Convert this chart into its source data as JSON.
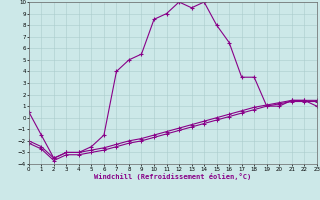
{
  "xlabel": "Windchill (Refroidissement éolien,°C)",
  "xlim": [
    0,
    23
  ],
  "ylim": [
    -4,
    10
  ],
  "bg_color": "#cce8e8",
  "line_color": "#880088",
  "grid_color": "#aacccc",
  "x_ticks": [
    0,
    1,
    2,
    3,
    4,
    5,
    6,
    7,
    8,
    9,
    10,
    11,
    12,
    13,
    14,
    15,
    16,
    17,
    18,
    19,
    20,
    21,
    22,
    23
  ],
  "y_ticks": [
    -4,
    -3,
    -2,
    -1,
    0,
    1,
    2,
    3,
    4,
    5,
    6,
    7,
    8,
    9,
    10
  ],
  "series1": {
    "x": [
      0,
      1,
      2,
      3,
      4,
      5,
      6,
      7,
      8,
      9,
      10,
      11,
      12,
      13,
      14,
      15,
      16,
      17,
      18,
      19,
      20,
      21,
      22,
      23
    ],
    "y": [
      0.5,
      -1.5,
      -3.5,
      -3.0,
      -3.0,
      -2.5,
      -1.5,
      4.0,
      5.0,
      5.5,
      8.5,
      9.0,
      10.0,
      9.5,
      10.0,
      8.0,
      6.5,
      3.5,
      3.5,
      1.0,
      1.0,
      1.5,
      1.5,
      1.0
    ]
  },
  "series2": {
    "x": [
      0,
      1,
      2,
      3,
      4,
      5,
      6,
      7,
      8,
      9,
      10,
      11,
      12,
      13,
      14,
      15,
      16,
      17,
      18,
      19,
      20,
      21,
      22,
      23
    ],
    "y": [
      -2.0,
      -2.5,
      -3.5,
      -3.0,
      -3.0,
      -2.8,
      -2.6,
      -2.3,
      -2.0,
      -1.8,
      -1.5,
      -1.2,
      -0.9,
      -0.6,
      -0.3,
      0.0,
      0.3,
      0.6,
      0.9,
      1.1,
      1.3,
      1.5,
      1.5,
      1.5
    ]
  },
  "series3": {
    "x": [
      0,
      1,
      2,
      3,
      4,
      5,
      6,
      7,
      8,
      9,
      10,
      11,
      12,
      13,
      14,
      15,
      16,
      17,
      18,
      19,
      20,
      21,
      22,
      23
    ],
    "y": [
      -2.2,
      -2.7,
      -3.7,
      -3.2,
      -3.2,
      -3.0,
      -2.8,
      -2.5,
      -2.2,
      -2.0,
      -1.7,
      -1.4,
      -1.1,
      -0.8,
      -0.5,
      -0.2,
      0.1,
      0.4,
      0.7,
      1.0,
      1.2,
      1.4,
      1.4,
      1.4
    ]
  }
}
